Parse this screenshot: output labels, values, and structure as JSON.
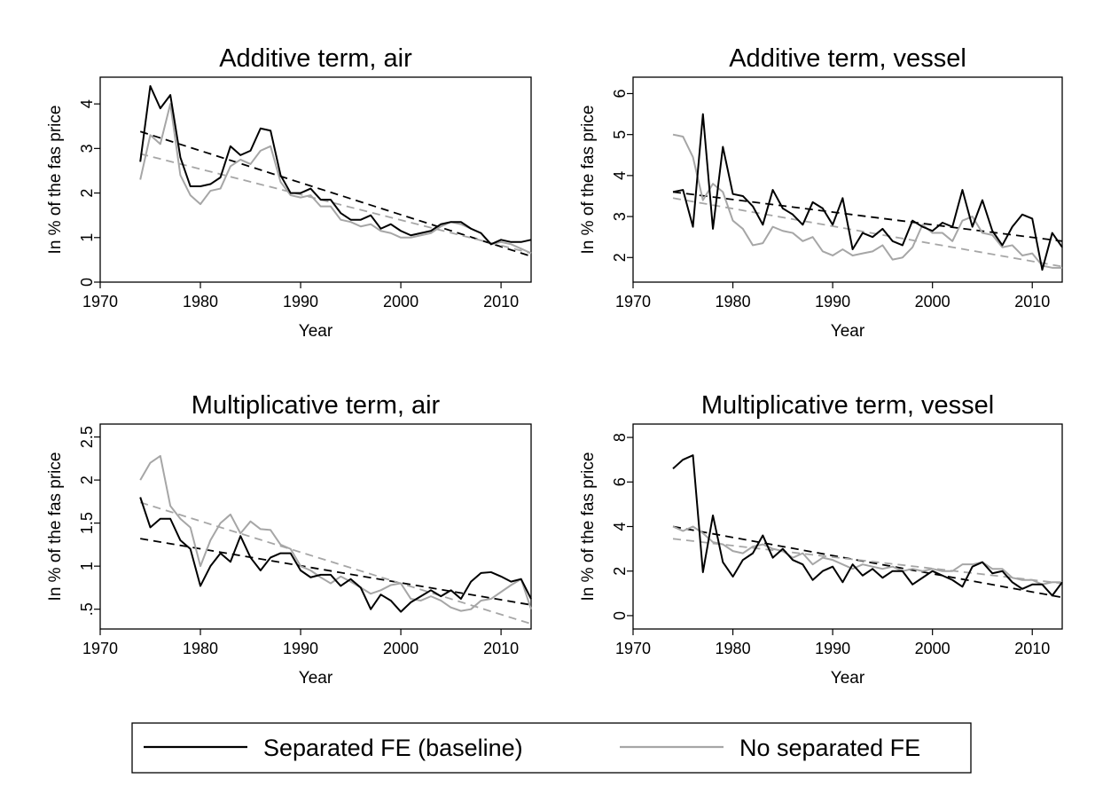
{
  "chart_data": [
    {
      "type": "line",
      "title": "Additive term, air",
      "xlabel": "Year",
      "ylabel": "In % of the fas price",
      "xlim": [
        1970,
        2013
      ],
      "ylim": [
        0,
        4.6
      ],
      "xticks": [
        1970,
        1980,
        1990,
        2000,
        2010
      ],
      "xtick_labels": [
        "1970",
        "1980",
        "1990",
        "2000",
        "2010"
      ],
      "yticks": [
        0,
        1,
        2,
        3,
        4
      ],
      "ytick_labels": [
        "0",
        "1",
        "2",
        "3",
        "4"
      ],
      "x": [
        1974,
        1975,
        1976,
        1977,
        1978,
        1979,
        1980,
        1981,
        1982,
        1983,
        1984,
        1985,
        1986,
        1987,
        1988,
        1989,
        1990,
        1991,
        1992,
        1993,
        1994,
        1995,
        1996,
        1997,
        1998,
        1999,
        2000,
        2001,
        2002,
        2003,
        2004,
        2005,
        2006,
        2007,
        2008,
        2009,
        2010,
        2011,
        2012,
        2013
      ],
      "series": [
        {
          "name": "Separated FE (baseline)",
          "color": "#000000",
          "values": [
            2.7,
            4.4,
            3.9,
            4.2,
            2.8,
            2.15,
            2.15,
            2.2,
            2.35,
            3.05,
            2.85,
            2.95,
            3.45,
            3.4,
            2.4,
            2.0,
            2.0,
            2.1,
            1.85,
            1.85,
            1.55,
            1.4,
            1.4,
            1.5,
            1.2,
            1.3,
            1.15,
            1.05,
            1.1,
            1.15,
            1.3,
            1.35,
            1.35,
            1.2,
            1.1,
            0.85,
            0.95,
            0.9,
            0.9,
            0.95
          ]
        },
        {
          "name": "No separated FE",
          "color": "#a6a6a6",
          "values": [
            2.3,
            3.3,
            3.1,
            4.0,
            2.4,
            1.95,
            1.75,
            2.05,
            2.1,
            2.6,
            2.75,
            2.65,
            2.95,
            3.05,
            2.25,
            1.95,
            1.9,
            1.95,
            1.7,
            1.7,
            1.4,
            1.35,
            1.25,
            1.3,
            1.15,
            1.1,
            1.0,
            1.0,
            1.05,
            1.1,
            1.25,
            1.35,
            1.3,
            1.2,
            1.1,
            0.85,
            0.9,
            0.85,
            0.75,
            0.65
          ]
        }
      ],
      "trends": [
        {
          "color": "#000000",
          "from": [
            1974,
            3.38
          ],
          "to": [
            2013,
            0.58
          ]
        },
        {
          "color": "#a6a6a6",
          "from": [
            1974,
            2.88
          ],
          "to": [
            2013,
            0.65
          ]
        }
      ]
    },
    {
      "type": "line",
      "title": "Additive term, vessel",
      "xlabel": "Year",
      "ylabel": "In % of the fas price",
      "xlim": [
        1970,
        2013
      ],
      "ylim": [
        1.4,
        6.4
      ],
      "xticks": [
        1970,
        1980,
        1990,
        2000,
        2010
      ],
      "xtick_labels": [
        "1970",
        "1980",
        "1990",
        "2000",
        "2010"
      ],
      "yticks": [
        2,
        3,
        4,
        5,
        6
      ],
      "ytick_labels": [
        "2",
        "3",
        "4",
        "5",
        "6"
      ],
      "x": [
        1974,
        1975,
        1976,
        1977,
        1978,
        1979,
        1980,
        1981,
        1982,
        1983,
        1984,
        1985,
        1986,
        1987,
        1988,
        1989,
        1990,
        1991,
        1992,
        1993,
        1994,
        1995,
        1996,
        1997,
        1998,
        1999,
        2000,
        2001,
        2002,
        2003,
        2004,
        2005,
        2006,
        2007,
        2008,
        2009,
        2010,
        2011,
        2012,
        2013
      ],
      "series": [
        {
          "name": "Separated FE (baseline)",
          "color": "#000000",
          "values": [
            3.6,
            3.65,
            2.75,
            5.5,
            2.7,
            4.7,
            3.55,
            3.5,
            3.25,
            2.8,
            3.65,
            3.2,
            3.05,
            2.8,
            3.35,
            3.2,
            2.8,
            3.45,
            2.2,
            2.6,
            2.5,
            2.7,
            2.4,
            2.3,
            2.9,
            2.75,
            2.65,
            2.85,
            2.75,
            3.65,
            2.75,
            3.4,
            2.65,
            2.3,
            2.75,
            3.05,
            2.95,
            1.7,
            2.6,
            2.25
          ]
        },
        {
          "name": "No separated FE",
          "color": "#a6a6a6",
          "values": [
            5.0,
            4.95,
            4.45,
            3.4,
            3.8,
            3.6,
            2.9,
            2.7,
            2.3,
            2.35,
            2.75,
            2.65,
            2.6,
            2.4,
            2.5,
            2.15,
            2.05,
            2.2,
            2.05,
            2.1,
            2.15,
            2.3,
            1.95,
            2.0,
            2.25,
            2.8,
            2.6,
            2.6,
            2.4,
            2.9,
            3.0,
            2.6,
            2.55,
            2.25,
            2.3,
            2.05,
            2.1,
            1.8,
            1.75,
            1.75
          ]
        }
      ],
      "trends": [
        {
          "color": "#000000",
          "from": [
            1974,
            3.6
          ],
          "to": [
            2013,
            2.4
          ]
        },
        {
          "color": "#a6a6a6",
          "from": [
            1974,
            3.45
          ],
          "to": [
            2013,
            1.78
          ]
        }
      ]
    },
    {
      "type": "line",
      "title": "Multiplicative term, air",
      "xlabel": "Year",
      "ylabel": "In % of the fas price",
      "xlim": [
        1970,
        2013
      ],
      "ylim": [
        0.27,
        2.65
      ],
      "xticks": [
        1970,
        1980,
        1990,
        2000,
        2010
      ],
      "xtick_labels": [
        "1970",
        "1980",
        "1990",
        "2000",
        "2010"
      ],
      "yticks": [
        0.5,
        1,
        1.5,
        2,
        2.5
      ],
      "ytick_labels": [
        ".5",
        "1",
        "1.5",
        "2",
        "2.5"
      ],
      "x": [
        1974,
        1975,
        1976,
        1977,
        1978,
        1979,
        1980,
        1981,
        1982,
        1983,
        1984,
        1985,
        1986,
        1987,
        1988,
        1989,
        1990,
        1991,
        1992,
        1993,
        1994,
        1995,
        1996,
        1997,
        1998,
        1999,
        2000,
        2001,
        2002,
        2003,
        2004,
        2005,
        2006,
        2007,
        2008,
        2009,
        2010,
        2011,
        2012,
        2013
      ],
      "series": [
        {
          "name": "Separated FE (baseline)",
          "color": "#000000",
          "values": [
            1.8,
            1.45,
            1.55,
            1.55,
            1.3,
            1.2,
            0.77,
            1.0,
            1.15,
            1.05,
            1.35,
            1.1,
            0.95,
            1.1,
            1.15,
            1.15,
            0.95,
            0.87,
            0.9,
            0.9,
            0.77,
            0.85,
            0.75,
            0.5,
            0.67,
            0.6,
            0.47,
            0.58,
            0.65,
            0.72,
            0.65,
            0.72,
            0.62,
            0.82,
            0.92,
            0.93,
            0.88,
            0.82,
            0.85,
            0.62
          ]
        },
        {
          "name": "No separated FE",
          "color": "#a6a6a6",
          "values": [
            2.0,
            2.2,
            2.28,
            1.7,
            1.55,
            1.45,
            1.0,
            1.3,
            1.5,
            1.6,
            1.38,
            1.52,
            1.43,
            1.42,
            1.25,
            1.2,
            1.0,
            0.95,
            0.87,
            0.8,
            0.88,
            0.82,
            0.75,
            0.68,
            0.72,
            0.78,
            0.8,
            0.62,
            0.6,
            0.65,
            0.6,
            0.52,
            0.48,
            0.5,
            0.6,
            0.62,
            0.7,
            0.78,
            0.85,
            0.5
          ]
        }
      ],
      "trends": [
        {
          "color": "#000000",
          "from": [
            1974,
            1.32
          ],
          "to": [
            2013,
            0.55
          ]
        },
        {
          "color": "#a6a6a6",
          "from": [
            1974,
            1.74
          ],
          "to": [
            2013,
            0.33
          ]
        }
      ]
    },
    {
      "type": "line",
      "title": "Multiplicative term, vessel",
      "xlabel": "Year",
      "ylabel": "In % of the fas price",
      "xlim": [
        1970,
        2013
      ],
      "ylim": [
        -0.6,
        8.6
      ],
      "xticks": [
        1970,
        1980,
        1990,
        2000,
        2010
      ],
      "xtick_labels": [
        "1970",
        "1980",
        "1990",
        "2000",
        "2010"
      ],
      "yticks": [
        0,
        2,
        4,
        6,
        8
      ],
      "ytick_labels": [
        "0",
        "2",
        "4",
        "6",
        "8"
      ],
      "x": [
        1974,
        1975,
        1976,
        1977,
        1978,
        1979,
        1980,
        1981,
        1982,
        1983,
        1984,
        1985,
        1986,
        1987,
        1988,
        1989,
        1990,
        1991,
        1992,
        1993,
        1994,
        1995,
        1996,
        1997,
        1998,
        1999,
        2000,
        2001,
        2002,
        2003,
        2004,
        2005,
        2006,
        2007,
        2008,
        2009,
        2010,
        2011,
        2012,
        2013
      ],
      "series": [
        {
          "name": "Separated FE (baseline)",
          "color": "#000000",
          "values": [
            6.6,
            7.0,
            7.2,
            1.95,
            4.5,
            2.4,
            1.75,
            2.5,
            2.8,
            3.6,
            2.6,
            3.0,
            2.5,
            2.3,
            1.6,
            2.0,
            2.2,
            1.5,
            2.3,
            1.8,
            2.1,
            1.7,
            2.0,
            2.0,
            1.4,
            1.7,
            2.0,
            1.8,
            1.6,
            1.3,
            2.2,
            2.4,
            1.9,
            2.0,
            1.5,
            1.2,
            1.4,
            1.4,
            0.9,
            1.5
          ]
        },
        {
          "name": "No separated FE",
          "color": "#a6a6a6",
          "values": [
            4.0,
            3.8,
            4.0,
            3.7,
            3.3,
            3.2,
            2.9,
            2.8,
            3.1,
            3.2,
            3.0,
            2.9,
            2.6,
            2.8,
            2.3,
            2.6,
            2.5,
            2.3,
            2.1,
            2.3,
            2.2,
            2.1,
            2.2,
            2.0,
            2.1,
            2.0,
            2.1,
            2.0,
            2.0,
            2.3,
            2.3,
            2.4,
            2.1,
            2.1,
            1.7,
            1.6,
            1.6,
            1.4,
            1.5,
            1.5
          ]
        }
      ],
      "trends": [
        {
          "color": "#000000",
          "from": [
            1974,
            4.0
          ],
          "to": [
            2013,
            0.82
          ]
        },
        {
          "color": "#a6a6a6",
          "from": [
            1974,
            3.45
          ],
          "to": [
            2013,
            1.45
          ]
        }
      ]
    }
  ],
  "legend": {
    "items": [
      {
        "label": "Separated FE (baseline)",
        "color": "#000000"
      },
      {
        "label": "No separated FE",
        "color": "#a6a6a6"
      }
    ]
  }
}
